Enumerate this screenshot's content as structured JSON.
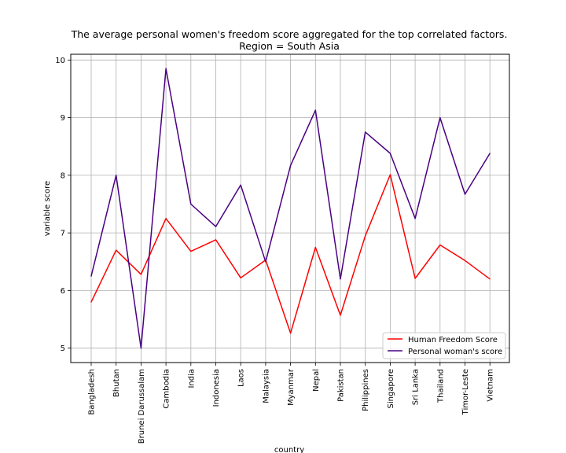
{
  "chart_data": {
    "type": "line",
    "title": "The average personal women's freedom score aggregated for the top correlated factors.",
    "subtitle": "Region = South Asia",
    "xlabel": "country",
    "ylabel": "variable score",
    "ylim": [
      4.75,
      10.1
    ],
    "yticks": [
      "5",
      "6",
      "7",
      "8",
      "9",
      "10"
    ],
    "grid": true,
    "legend_position": "lower-right",
    "categories": [
      "Bangladesh",
      "Bhutan",
      "Brunei Darussalam",
      "Cambodia",
      "India",
      "Indonesia",
      "Laos",
      "Malaysia",
      "Myanmar",
      "Nepal",
      "Pakistan",
      "Philippines",
      "Singapore",
      "Sri Lanka",
      "Thailand",
      "Timor-Leste",
      "Vietnam"
    ],
    "series": [
      {
        "name": "Human Freedom Score",
        "color": "#ff0000",
        "values": [
          5.8,
          6.7,
          6.28,
          7.25,
          6.68,
          6.88,
          6.22,
          6.53,
          5.26,
          6.75,
          5.57,
          6.95,
          8.01,
          6.21,
          6.79,
          6.52,
          6.2
        ]
      },
      {
        "name": "Personal woman's score",
        "color": "#4b0082",
        "values": [
          6.25,
          8.0,
          5.0,
          9.85,
          7.5,
          7.11,
          7.83,
          6.5,
          8.17,
          9.13,
          6.2,
          8.75,
          8.38,
          7.25,
          9.0,
          7.67,
          8.38
        ]
      }
    ]
  }
}
